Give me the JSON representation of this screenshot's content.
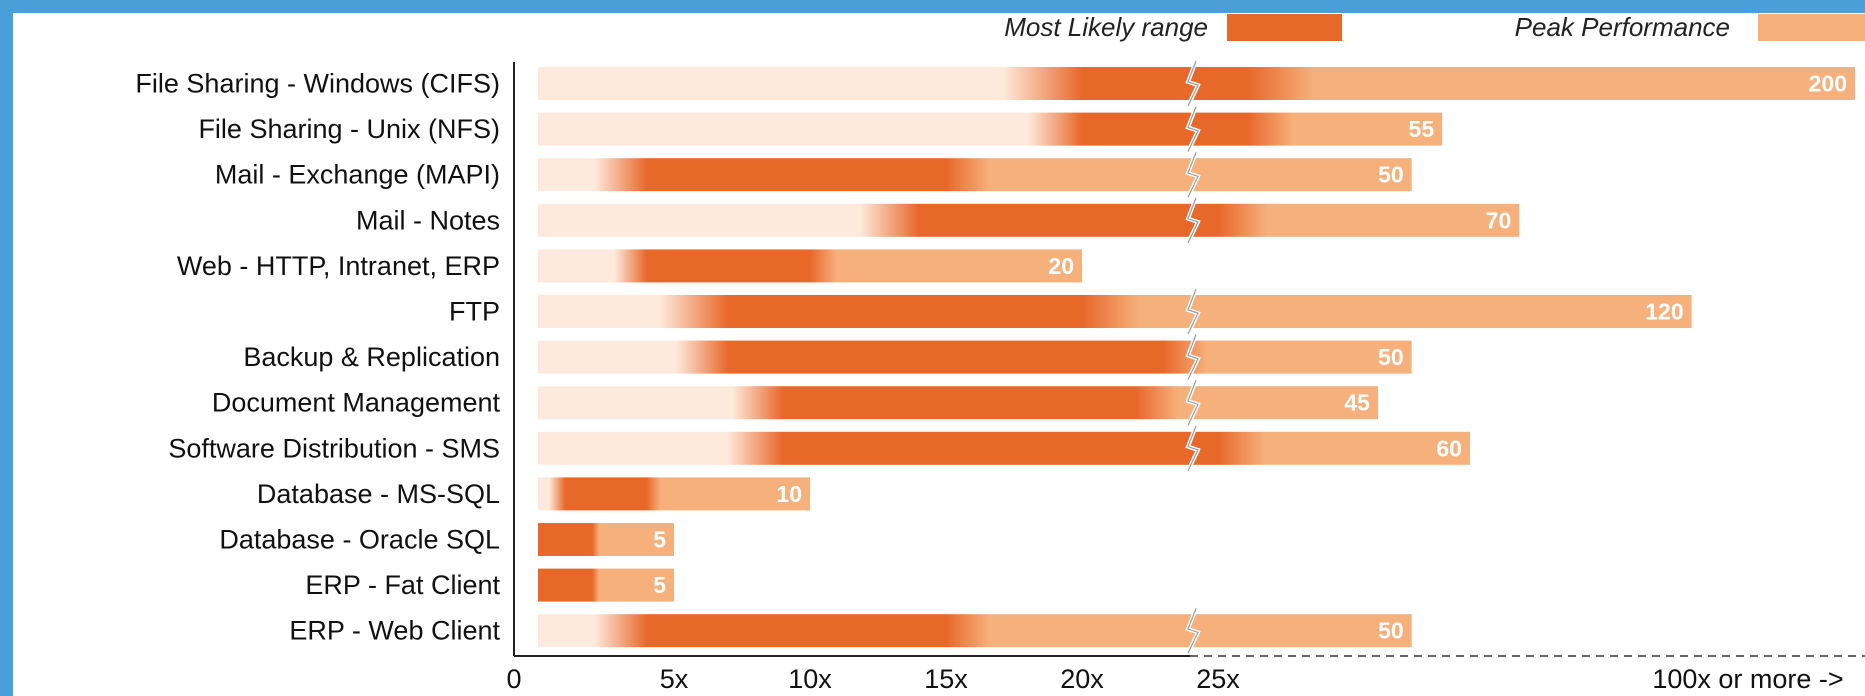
{
  "chart_data": {
    "type": "bar",
    "orientation": "horizontal",
    "legend": {
      "position": "top-right",
      "entries": [
        {
          "name": "Most Likely range",
          "color": "#e8682a"
        },
        {
          "name": "Peak Performance",
          "color": "#f6b07c"
        }
      ]
    },
    "colors": {
      "most_likely": "#e8682a",
      "peak": "#f6b07c",
      "fade": "#fdeadc",
      "frame": "#4a9fd8"
    },
    "x_ticks": [
      "0",
      "5x",
      "10x",
      "15x",
      "20x",
      "25x",
      "100x or more ->"
    ],
    "x_scale": "linear 0-25x, broken axis beyond 25x",
    "categories": [
      "File Sharing - Windows (CIFS)",
      "File Sharing - Unix (NFS)",
      "Mail - Exchange (MAPI)",
      "Mail - Notes",
      "Web - HTTP, Intranet, ERP",
      "FTP",
      "Backup & Replication",
      "Document Management",
      "Software Distribution - SMS",
      "Database - MS-SQL",
      "Database - Oracle SQL",
      "ERP - Fat Client",
      "ERP - Web Client"
    ],
    "series": [
      {
        "name": "Most Likely range",
        "ranges": [
          [
            20,
            30
          ],
          [
            20,
            30
          ],
          [
            4,
            15
          ],
          [
            14,
            25
          ],
          [
            4,
            10
          ],
          [
            7,
            20
          ],
          [
            7,
            23
          ],
          [
            9,
            22
          ],
          [
            9,
            25
          ],
          [
            1,
            4
          ],
          [
            0,
            2
          ],
          [
            0,
            2
          ],
          [
            4,
            15
          ]
        ]
      },
      {
        "name": "Peak Performance",
        "values": [
          200,
          55,
          50,
          70,
          20,
          120,
          50,
          45,
          60,
          10,
          5,
          5,
          50
        ]
      }
    ],
    "value_labels": [
      "200",
      "55",
      "50",
      "70",
      "20",
      "120",
      "50",
      "45",
      "60",
      "10",
      "5",
      "5",
      "50"
    ]
  }
}
